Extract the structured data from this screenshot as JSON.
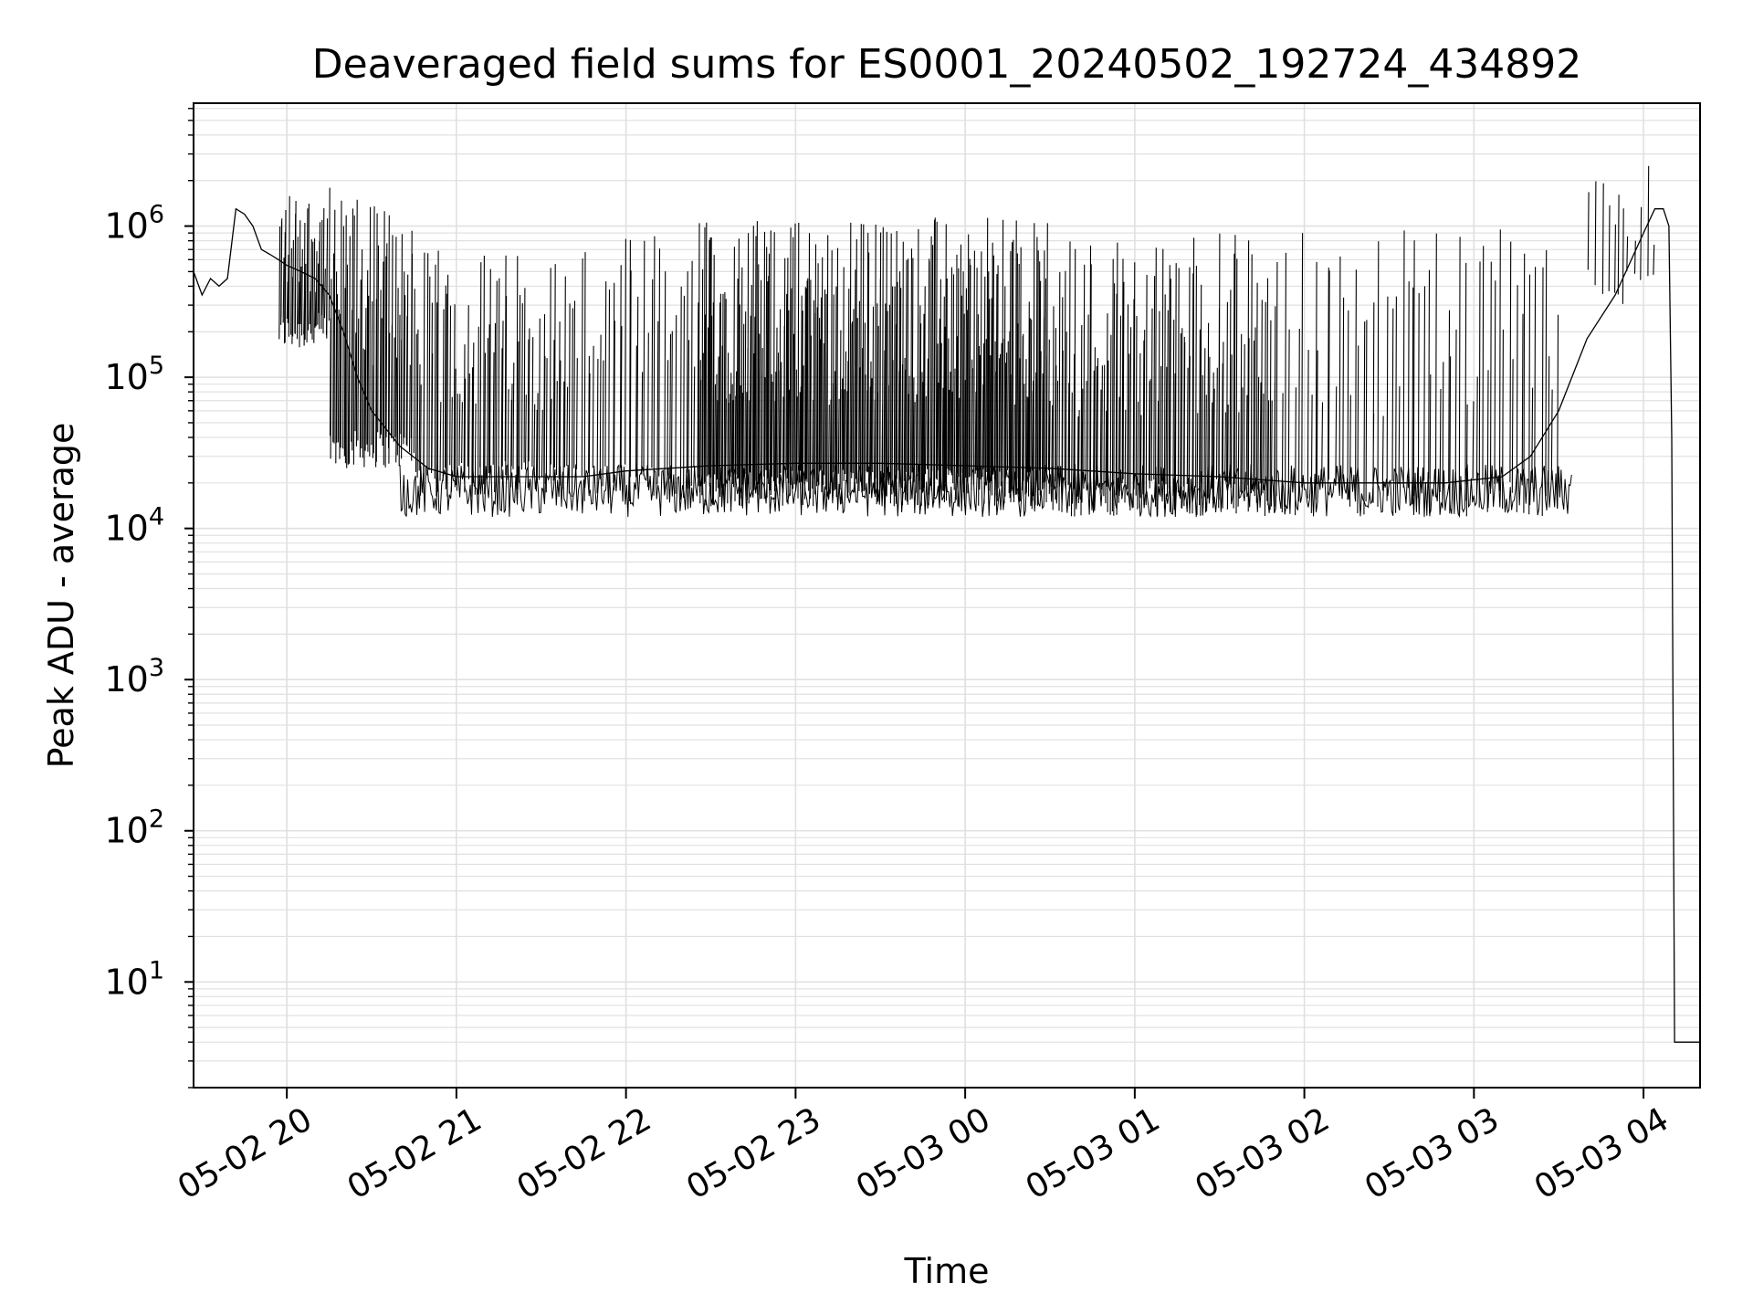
{
  "chart_data": {
    "type": "line",
    "title": "Deaveraged field sums for ES0001_20240502_192724_434892",
    "xlabel": "Time",
    "ylabel": "Peak ADU - average",
    "yscale": "log",
    "ylim": [
      2,
      6500000
    ],
    "xlim": [
      "2024-05-02 19:27",
      "2024-05-03 04:20"
    ],
    "grid": true,
    "line_color": "#000000",
    "grid_color": "#e0e0e0",
    "x_ticks": [
      {
        "t": "2024-05-02 20:00",
        "label": "05-02 20"
      },
      {
        "t": "2024-05-02 21:00",
        "label": "05-02 21"
      },
      {
        "t": "2024-05-02 22:00",
        "label": "05-02 22"
      },
      {
        "t": "2024-05-02 23:00",
        "label": "05-02 23"
      },
      {
        "t": "2024-05-03 00:00",
        "label": "05-03 00"
      },
      {
        "t": "2024-05-03 01:00",
        "label": "05-03 01"
      },
      {
        "t": "2024-05-03 02:00",
        "label": "05-03 02"
      },
      {
        "t": "2024-05-03 03:00",
        "label": "05-03 03"
      },
      {
        "t": "2024-05-03 04:00",
        "label": "05-03 04"
      }
    ],
    "y_ticks": [
      {
        "value": 10,
        "base": "10",
        "exp": "1"
      },
      {
        "value": 100,
        "base": "10",
        "exp": "2"
      },
      {
        "value": 1000,
        "base": "10",
        "exp": "3"
      },
      {
        "value": 10000,
        "base": "10",
        "exp": "4"
      },
      {
        "value": 100000,
        "base": "10",
        "exp": "5"
      },
      {
        "value": 1000000,
        "base": "10",
        "exp": "6"
      }
    ],
    "series": [
      {
        "x": [
          "2024-05-02 19:27",
          "2024-05-02 19:30",
          "2024-05-02 19:33",
          "2024-05-02 19:36",
          "2024-05-02 19:39",
          "2024-05-02 19:42",
          "2024-05-02 19:45",
          "2024-05-02 19:48",
          "2024-05-02 19:51",
          "2024-05-02 19:54",
          "2024-05-02 19:57",
          "2024-05-02 20:00",
          "2024-05-02 20:05",
          "2024-05-02 20:10",
          "2024-05-02 20:15",
          "2024-05-02 20:20",
          "2024-05-02 20:25",
          "2024-05-02 20:30",
          "2024-05-02 20:40",
          "2024-05-02 20:50",
          "2024-05-02 21:00",
          "2024-05-02 21:15",
          "2024-05-02 21:30",
          "2024-05-02 21:45",
          "2024-05-02 22:00",
          "2024-05-02 22:15",
          "2024-05-02 22:30",
          "2024-05-02 23:00",
          "2024-05-02 23:30",
          "2024-05-03 00:00",
          "2024-05-03 00:30",
          "2024-05-03 01:00",
          "2024-05-03 01:30",
          "2024-05-03 02:00",
          "2024-05-03 02:30",
          "2024-05-03 02:50",
          "2024-05-03 03:10",
          "2024-05-03 03:20",
          "2024-05-03 03:30",
          "2024-05-03 03:40",
          "2024-05-03 03:50",
          "2024-05-03 04:00",
          "2024-05-03 04:04",
          "2024-05-03 04:07",
          "2024-05-03 04:09",
          "2024-05-03 04:10",
          "2024-05-03 04:11",
          "2024-05-03 04:12",
          "2024-05-03 04:20"
        ],
        "values": [
          500000,
          350000,
          450000,
          400000,
          450000,
          1300000,
          1200000,
          1000000,
          700000,
          650000,
          600000,
          550000,
          500000,
          450000,
          350000,
          200000,
          100000,
          60000,
          35000,
          25000,
          22000,
          22000,
          22000,
          22000,
          24000,
          25000,
          26000,
          27000,
          27000,
          26000,
          25000,
          23000,
          22000,
          20000,
          20000,
          20000,
          22000,
          30000,
          60000,
          180000,
          350000,
          900000,
          1300000,
          1300000,
          1000000,
          40000,
          4,
          4,
          4
        ]
      }
    ],
    "spikes": [
      {
        "from": "2024-05-02 19:57",
        "to": "2024-05-02 20:15",
        "low": 150000,
        "high": 1800000,
        "n": 40
      },
      {
        "from": "2024-05-02 20:15",
        "to": "2024-05-02 20:45",
        "low": 25000,
        "high": 1600000,
        "n": 60
      },
      {
        "from": "2024-05-02 20:45",
        "to": "2024-05-02 21:40",
        "low": 16000,
        "high": 700000,
        "n": 80
      },
      {
        "from": "2024-05-02 21:40",
        "to": "2024-05-02 22:25",
        "low": 15000,
        "high": 900000,
        "n": 40
      },
      {
        "from": "2024-05-02 22:25",
        "to": "2024-05-03 00:30",
        "low": 14000,
        "high": 1150000,
        "n": 320
      },
      {
        "from": "2024-05-03 00:30",
        "to": "2024-05-03 01:50",
        "low": 12000,
        "high": 900000,
        "n": 130
      },
      {
        "from": "2024-05-03 01:50",
        "to": "2024-05-03 03:30",
        "low": 12000,
        "high": 950000,
        "n": 70
      },
      {
        "from": "2024-05-03 03:40",
        "to": "2024-05-03 04:04",
        "low": 300000,
        "high": 3500000,
        "n": 12
      }
    ]
  }
}
